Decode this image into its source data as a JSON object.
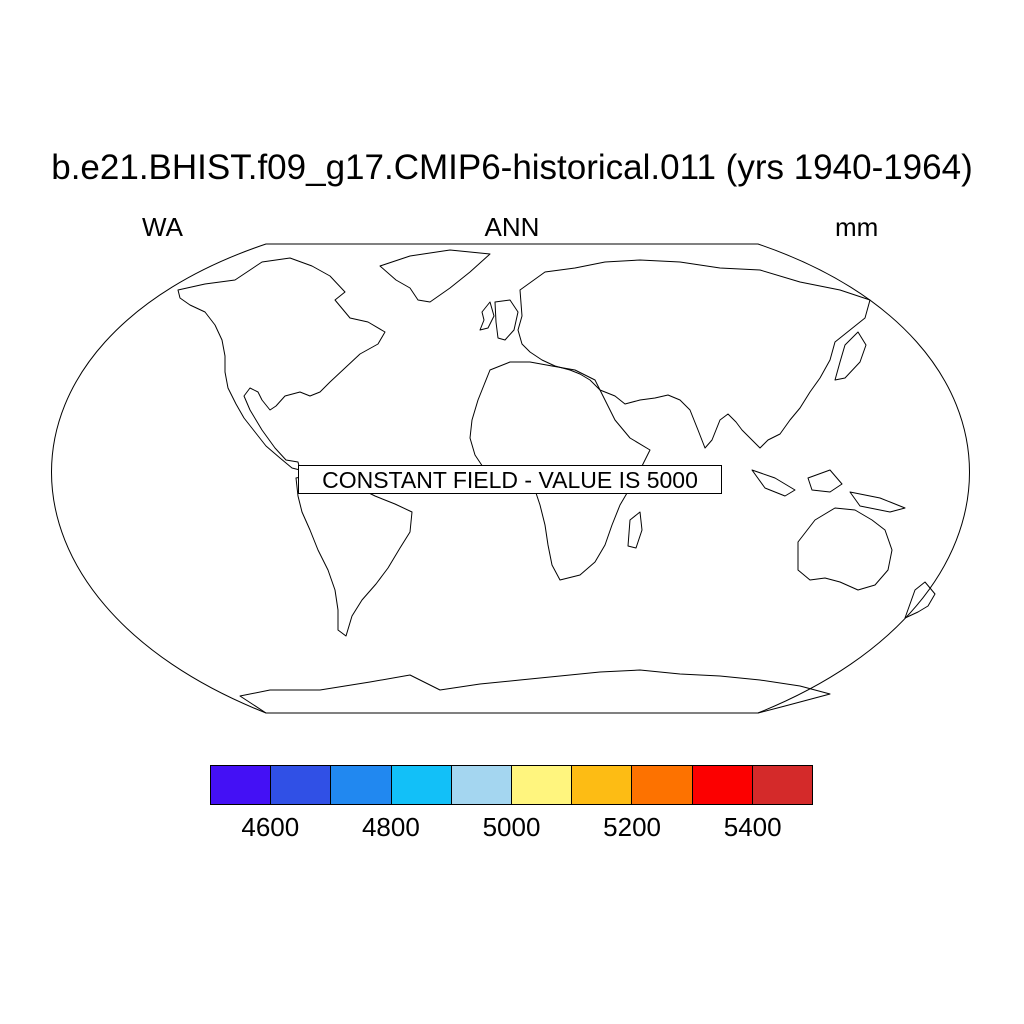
{
  "title": "b.e21.BHIST.f09_g17.CMIP6-historical.011 (yrs 1940-1964)",
  "left_label": "WA",
  "center_label": "ANN",
  "right_label": "mm",
  "note": "CONSTANT FIELD - VALUE IS 5000",
  "colorbar": {
    "colors": [
      "#4410f5",
      "#3050e6",
      "#2188f0",
      "#12c0f8",
      "#a4d6f0",
      "#fff57e",
      "#fdbc14",
      "#fd7200",
      "#fc0000",
      "#d42a2a"
    ],
    "ticks": [
      "4600",
      "4800",
      "5000",
      "5200",
      "5400"
    ]
  },
  "map": {
    "projection": "Robinson",
    "outline": "coastlines"
  }
}
